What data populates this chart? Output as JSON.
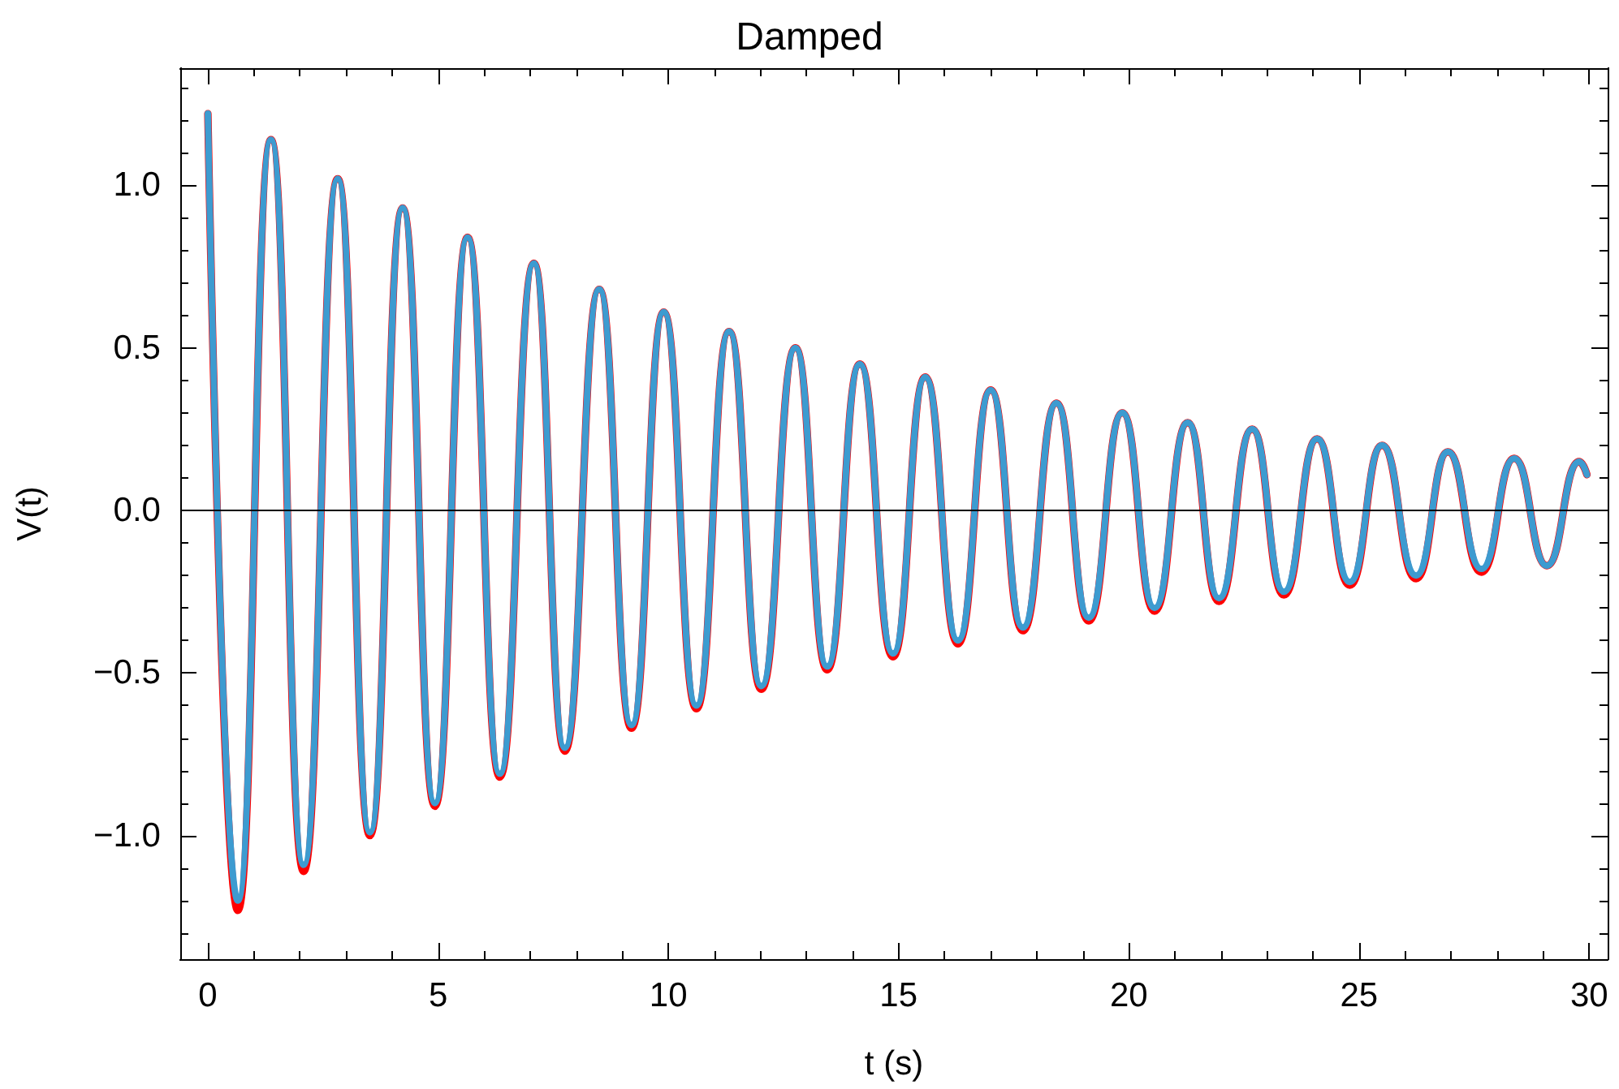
{
  "chart_data": {
    "type": "line",
    "title": "Damped",
    "xlabel": "t (s)",
    "ylabel": "V(t)",
    "xlim": [
      -0.6,
      30.4
    ],
    "xticks": [
      0,
      5,
      10,
      15,
      20,
      25,
      30
    ],
    "ylim": [
      -1.38,
      1.36
    ],
    "yticks": [
      {
        "value": -1,
        "label": "−1.0"
      },
      {
        "value": -0.5,
        "label": "−0.5"
      },
      {
        "value": 0,
        "label": "0.0"
      },
      {
        "value": 0.5,
        "label": "0.5"
      },
      {
        "value": 1,
        "label": "1.0"
      }
    ],
    "grid": false,
    "marker": "none",
    "line_style": "solid",
    "ref_lines": [
      {
        "axis": "y",
        "value": 0,
        "color": "#000000"
      }
    ],
    "series": [
      {
        "color": "#ff0000",
        "x": [
          0,
          0.65,
          1.37,
          2.08,
          2.82,
          3.52,
          4.23,
          4.93,
          5.64,
          6.34,
          7.08,
          7.75,
          8.5,
          9.2,
          9.9,
          10.61,
          11.32,
          12.02,
          12.76,
          13.45,
          14.16,
          14.88,
          15.58,
          16.29,
          17.0,
          17.7,
          18.43,
          19.13,
          19.86,
          20.56,
          21.28,
          21.96,
          22.68,
          23.37,
          24.09,
          24.8,
          25.5,
          26.24,
          26.93,
          27.66,
          28.37,
          29.08,
          29.78,
          29.95
        ],
        "values": [
          1.22,
          -1.23,
          1.14,
          -1.11,
          1.02,
          -1.0,
          0.93,
          -0.91,
          0.84,
          -0.82,
          0.76,
          -0.74,
          0.68,
          -0.67,
          0.61,
          -0.61,
          0.55,
          -0.55,
          0.5,
          -0.49,
          0.45,
          -0.45,
          0.41,
          -0.41,
          0.37,
          -0.37,
          0.33,
          -0.34,
          0.3,
          -0.31,
          0.27,
          -0.28,
          0.25,
          -0.26,
          0.22,
          -0.23,
          0.2,
          -0.21,
          0.18,
          -0.19,
          0.16,
          -0.17,
          0.15,
          0.11
        ]
      },
      {
        "color": "#3d9bd0",
        "x": [
          0,
          0.65,
          1.37,
          2.08,
          2.82,
          3.52,
          4.23,
          4.93,
          5.64,
          6.34,
          7.08,
          7.75,
          8.5,
          9.2,
          9.9,
          10.61,
          11.32,
          12.02,
          12.76,
          13.45,
          14.16,
          14.88,
          15.58,
          16.29,
          17.0,
          17.7,
          18.43,
          19.13,
          19.86,
          20.56,
          21.28,
          21.96,
          22.68,
          23.37,
          24.09,
          24.8,
          25.5,
          26.24,
          26.93,
          27.66,
          28.37,
          29.08,
          29.78,
          29.95
        ],
        "values": [
          1.22,
          -1.2,
          1.14,
          -1.09,
          1.02,
          -0.99,
          0.93,
          -0.9,
          0.84,
          -0.81,
          0.76,
          -0.73,
          0.68,
          -0.66,
          0.61,
          -0.6,
          0.55,
          -0.54,
          0.5,
          -0.48,
          0.45,
          -0.44,
          0.41,
          -0.4,
          0.37,
          -0.36,
          0.33,
          -0.33,
          0.3,
          -0.3,
          0.27,
          -0.27,
          0.25,
          -0.25,
          0.22,
          -0.22,
          0.2,
          -0.2,
          0.18,
          -0.18,
          0.16,
          -0.17,
          0.15,
          0.11
        ]
      }
    ]
  }
}
